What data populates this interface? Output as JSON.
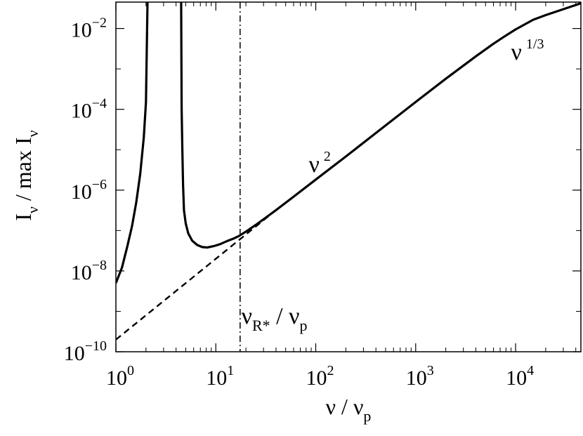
{
  "chart_data": {
    "type": "line",
    "x_scale": "log",
    "y_scale": "log",
    "xlim": [
      1,
      45000
    ],
    "ylim": [
      1e-10,
      0.045
    ],
    "grid": false,
    "legend": "none",
    "x_ticks": [
      {
        "value": 1,
        "base": "10",
        "exp": "0"
      },
      {
        "value": 10,
        "base": "10",
        "exp": "1"
      },
      {
        "value": 100,
        "base": "10",
        "exp": "2"
      },
      {
        "value": 1000,
        "base": "10",
        "exp": "3"
      },
      {
        "value": 10000,
        "base": "10",
        "exp": "4"
      }
    ],
    "y_ticks": [
      {
        "value": 1e-10,
        "base": "10",
        "exp": "−10"
      },
      {
        "value": 1e-08,
        "base": "10",
        "exp": "−8"
      },
      {
        "value": 1e-06,
        "base": "10",
        "exp": "−6"
      },
      {
        "value": 0.0001,
        "base": "10",
        "exp": "−4"
      },
      {
        "value": 0.01,
        "base": "10",
        "exp": "−2"
      }
    ],
    "xlabel": {
      "main": "ν / ν",
      "sub": "p"
    },
    "ylabel": {
      "a": "I",
      "a_sub": "ν",
      "b": " / max I",
      "b_sub": "ν"
    },
    "series": [
      {
        "style": "solid",
        "x": [
          1.0,
          1.15,
          1.3,
          1.45,
          1.6,
          1.75,
          1.9,
          2.0,
          2.07
        ],
        "y": [
          5e-09,
          1.2e-08,
          4e-08,
          1.3e-07,
          5e-07,
          2.5e-06,
          2e-05,
          0.00015,
          0.045
        ]
      },
      {
        "style": "solid",
        "x": [
          4.5,
          4.55,
          4.62,
          4.7,
          4.8,
          5.0,
          5.3,
          5.8,
          6.5,
          7.3,
          8.2,
          9.5,
          11,
          13,
          15,
          17,
          20,
          25,
          30,
          40,
          60,
          100,
          200,
          500,
          1000,
          2000,
          4000,
          6000,
          8000,
          10000,
          15000,
          20000,
          30000,
          45000
        ],
        "y": [
          0.045,
          0.0001,
          1e-05,
          1.4e-06,
          3.2e-07,
          1.5e-07,
          8.5e-08,
          5.6e-08,
          4.4e-08,
          3.9e-08,
          3.8e-08,
          4.1e-08,
          4.6e-08,
          5.5e-08,
          6.3e-08,
          7.3e-08,
          9.4e-08,
          1.37e-07,
          1.89e-07,
          3.2e-07,
          6.9e-07,
          1.82e-06,
          6.8e-06,
          4e-05,
          0.000152,
          0.00057,
          0.00205,
          0.0042,
          0.0067,
          0.0095,
          0.0165,
          0.0215,
          0.03,
          0.042
        ]
      },
      {
        "style": "dashed",
        "x": [
          1,
          40
        ],
        "y": [
          2e-10,
          3.2e-07
        ]
      }
    ],
    "vline": {
      "x": 17.5,
      "style": "dash-dot"
    },
    "annotations": [
      {
        "text": "ν",
        "sup": "2",
        "x": 85,
        "y": 2.8e-06
      },
      {
        "text": "ν",
        "sup": "1/3",
        "x": 9000,
        "y": 0.0017
      },
      {
        "text": "ν",
        "sub": "R*",
        "tail": " / ν",
        "sub2": "p",
        "x": 18,
        "y": 5e-10
      }
    ]
  }
}
